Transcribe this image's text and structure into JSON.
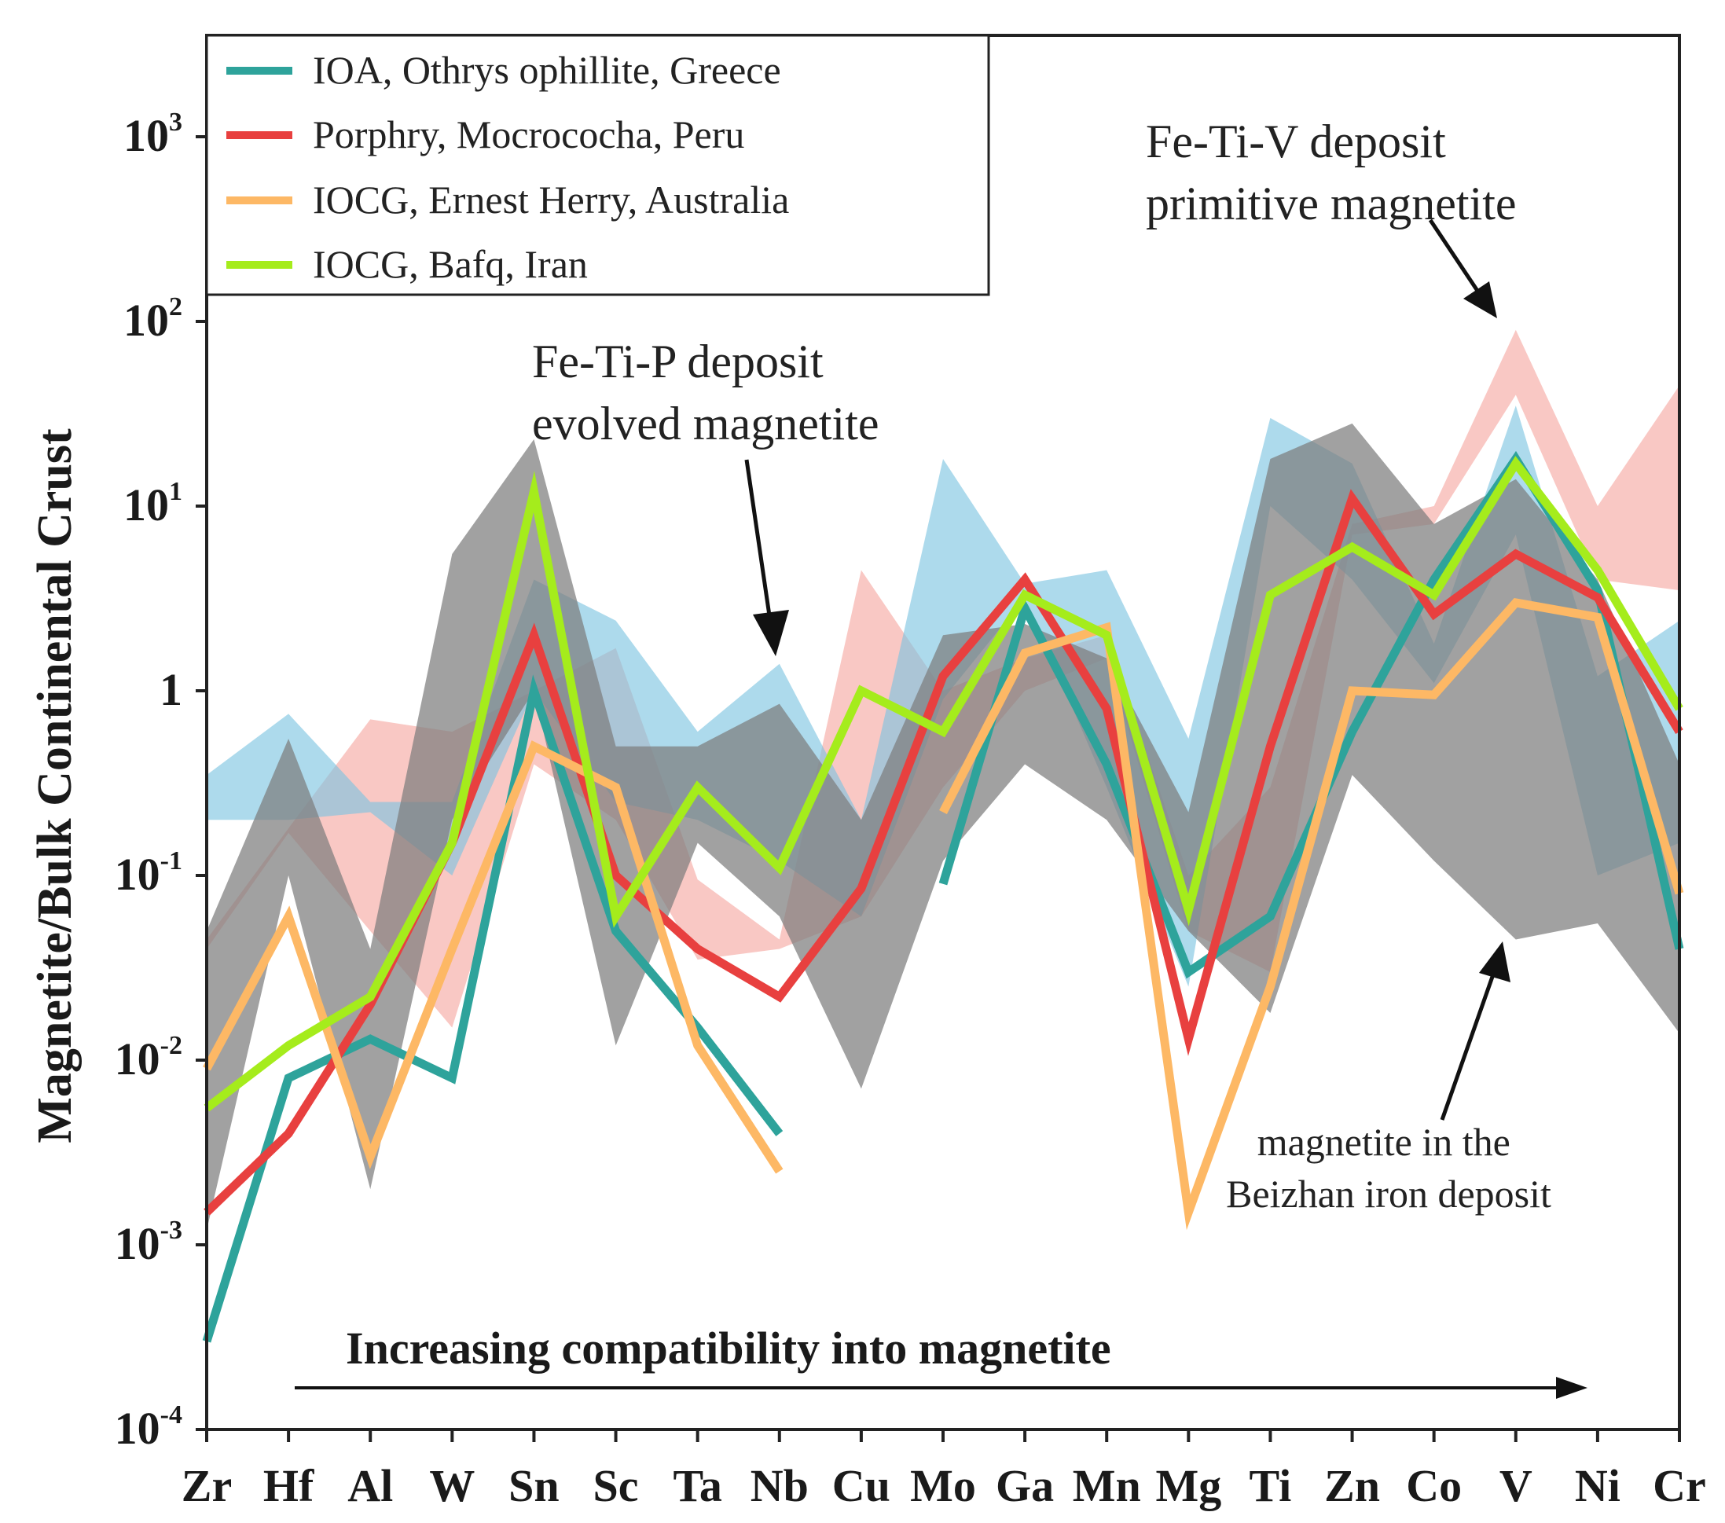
{
  "chart_data": {
    "type": "line",
    "title": "",
    "xlabel": "",
    "ylabel": "Magnetite/Bulk Continental Crust",
    "yscale": "log",
    "ylim": [
      0.0001,
      3000
    ],
    "y_ticks": [
      {
        "value": 0.0001,
        "base": "10",
        "exp": "-4"
      },
      {
        "value": 0.001,
        "base": "10",
        "exp": "-3"
      },
      {
        "value": 0.01,
        "base": "10",
        "exp": "-2"
      },
      {
        "value": 0.1,
        "base": "10",
        "exp": "-1"
      },
      {
        "value": 1,
        "base": "1",
        "exp": ""
      },
      {
        "value": 10,
        "base": "10",
        "exp": "1"
      },
      {
        "value": 100,
        "base": "10",
        "exp": "2"
      },
      {
        "value": 1000,
        "base": "10",
        "exp": "3"
      }
    ],
    "categories": [
      "Zr",
      "Hf",
      "Al",
      "W",
      "Sn",
      "Sc",
      "Ta",
      "Nb",
      "Cu",
      "Mo",
      "Ga",
      "Mn",
      "Mg",
      "Ti",
      "Zn",
      "Co",
      "V",
      "Ni",
      "Cr"
    ],
    "series": [
      {
        "name": "IOA, Othrys ophillite, Greece",
        "color": "#2ea39b",
        "values": [
          0.0003,
          0.008,
          0.013,
          0.008,
          1.0,
          0.05,
          0.015,
          0.004,
          null,
          0.09,
          2.8,
          0.4,
          0.03,
          0.06,
          0.6,
          4.0,
          18,
          3.5,
          0.04
        ],
        "segments": [
          [
            0,
            7
          ],
          [
            9,
            18
          ]
        ]
      },
      {
        "name": "Porphry, Mocrococha, Peru",
        "color": "#e8403f",
        "values": [
          0.0015,
          0.004,
          0.02,
          0.15,
          2.0,
          0.1,
          0.04,
          0.022,
          0.085,
          1.2,
          4.0,
          0.8,
          0.013,
          0.5,
          11,
          2.6,
          5.5,
          3.2,
          0.6
        ],
        "segments": [
          [
            0,
            18
          ]
        ]
      },
      {
        "name": "IOCG, Ernest Herry, Australia",
        "color": "#fdb865",
        "values": [
          0.009,
          0.06,
          0.003,
          0.04,
          0.5,
          0.3,
          0.012,
          0.0025,
          null,
          0.22,
          1.6,
          2.2,
          0.0015,
          0.025,
          1.0,
          0.95,
          3.0,
          2.5,
          0.08
        ],
        "segments": [
          [
            0,
            7
          ],
          [
            9,
            18
          ]
        ]
      },
      {
        "name": "IOCG, Bafq, Iran",
        "color": "#a5ec1c",
        "values": [
          0.0055,
          0.012,
          0.022,
          0.15,
          12,
          0.06,
          0.3,
          0.11,
          1.0,
          0.6,
          3.3,
          2.0,
          0.065,
          3.3,
          6.0,
          3.3,
          17,
          4.5,
          0.8
        ],
        "segments": [
          [
            0,
            18
          ]
        ]
      }
    ],
    "bands": [
      {
        "name": "Fe-Ti-V deposit primitive magnetite",
        "color": "#f5a79f",
        "opacity": 0.62,
        "upper": [
          0.045,
          0.18,
          0.7,
          0.6,
          1.0,
          1.7,
          0.095,
          0.045,
          4.5,
          1.0,
          1.5,
          2.0,
          0.1,
          0.3,
          8.0,
          10,
          90,
          10,
          45
        ],
        "lower": [
          0.04,
          0.17,
          0.05,
          0.015,
          0.4,
          0.2,
          0.035,
          0.04,
          0.06,
          0.3,
          1.0,
          1.5,
          0.05,
          0.03,
          7.0,
          8.0,
          40,
          4.0,
          3.5
        ]
      },
      {
        "name": "Fe-Ti-P deposit evolved magnetite",
        "color": "#7bc3e0",
        "opacity": 0.62,
        "upper": [
          0.35,
          0.75,
          0.25,
          0.25,
          4.0,
          2.4,
          0.6,
          1.4,
          0.2,
          18,
          3.8,
          4.5,
          0.55,
          30,
          17,
          1.8,
          35,
          1.2,
          2.4
        ],
        "lower": [
          0.2,
          0.2,
          0.22,
          0.1,
          1.0,
          0.25,
          0.2,
          0.12,
          0.06,
          0.9,
          3.2,
          0.3,
          0.025,
          10,
          4.0,
          1.1,
          7.0,
          0.1,
          0.15
        ]
      },
      {
        "name": "magnetite in the Beizhan iron deposit",
        "color": "#7d7d7d",
        "opacity": 0.72,
        "upper": [
          0.05,
          0.55,
          0.04,
          5.5,
          23,
          0.5,
          0.5,
          0.85,
          0.2,
          2.0,
          2.3,
          1.5,
          0.22,
          18,
          28,
          8.0,
          14,
          4.0,
          0.4
        ],
        "lower": [
          0.0012,
          0.1,
          0.002,
          0.2,
          1.0,
          0.012,
          0.15,
          0.06,
          0.007,
          0.12,
          0.4,
          0.2,
          0.05,
          0.018,
          0.35,
          0.12,
          0.045,
          0.055,
          0.014
        ]
      }
    ],
    "legend": {
      "position": "top-left"
    },
    "annotations": [
      {
        "id": "fetip",
        "lines": [
          "Fe-Ti-P deposit",
          "evolved magnetite"
        ]
      },
      {
        "id": "fetiv",
        "lines": [
          "Fe-Ti-V deposit",
          "primitive magnetite"
        ]
      },
      {
        "id": "beizhan",
        "lines": [
          "magnetite in the",
          "Beizhan iron deposit"
        ]
      }
    ],
    "arrow_label": "Increasing compatibility into magnetite"
  }
}
